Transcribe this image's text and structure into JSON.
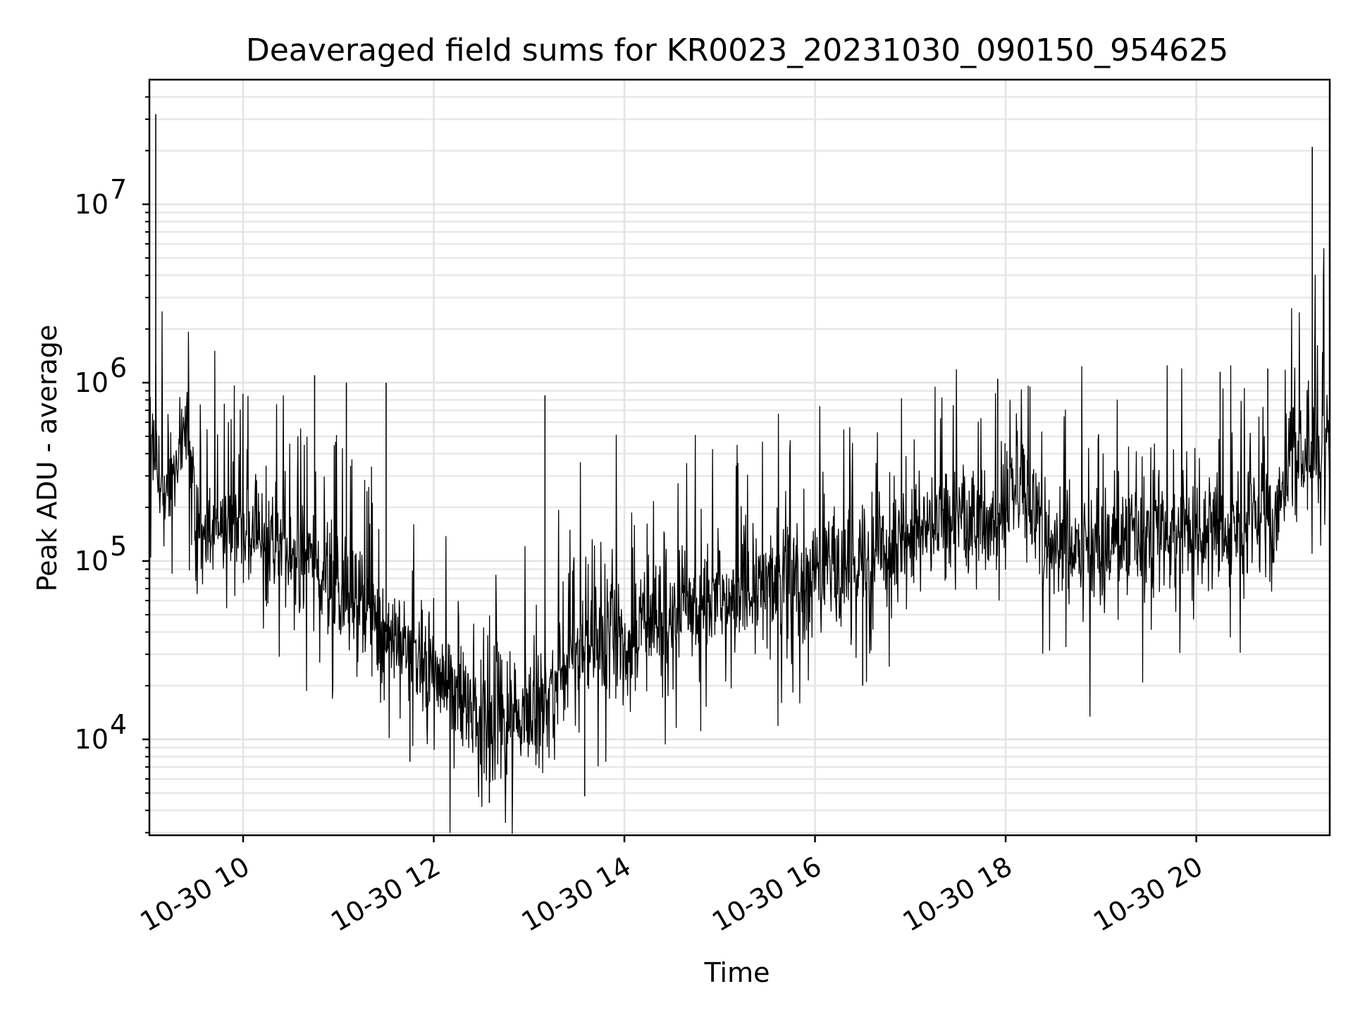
{
  "chart_data": {
    "type": "line",
    "title": "Deaveraged field sums for KR0023_20231030_090150_954625",
    "xlabel": "Time",
    "ylabel": "Peak ADU - average",
    "y_scale": "log",
    "grid": true,
    "line_color": "#000000",
    "grid_color": "#e3e3e3",
    "xlim": [
      "2023-10-30 09:01",
      "2023-10-30 21:24"
    ],
    "ylim": [
      2900,
      50000000
    ],
    "x_ticks": [
      {
        "time": "2023-10-30 10:00",
        "label": "10-30 10"
      },
      {
        "time": "2023-10-30 12:00",
        "label": "10-30 12"
      },
      {
        "time": "2023-10-30 14:00",
        "label": "10-30 14"
      },
      {
        "time": "2023-10-30 16:00",
        "label": "10-30 16"
      },
      {
        "time": "2023-10-30 18:00",
        "label": "10-30 18"
      },
      {
        "time": "2023-10-30 20:00",
        "label": "10-30 20"
      }
    ],
    "y_ticks": [
      {
        "value": 10000,
        "base": "10",
        "exp": "4"
      },
      {
        "value": 100000,
        "base": "10",
        "exp": "5"
      },
      {
        "value": 1000000,
        "base": "10",
        "exp": "6"
      },
      {
        "value": 10000000,
        "base": "10",
        "exp": "7"
      }
    ],
    "series": [
      {
        "values_profile": [
          {
            "time": "2023-10-30 09:01",
            "median": 400000
          },
          {
            "time": "2023-10-30 09:10",
            "median": 250000
          },
          {
            "time": "2023-10-30 09:25",
            "median": 500000
          },
          {
            "time": "2023-10-30 09:30",
            "median": 180000
          },
          {
            "time": "2023-10-30 10:00",
            "median": 150000
          },
          {
            "time": "2023-10-30 10:30",
            "median": 120000
          },
          {
            "time": "2023-10-30 11:00",
            "median": 70000
          },
          {
            "time": "2023-10-30 11:30",
            "median": 40000
          },
          {
            "time": "2023-10-30 12:00",
            "median": 25000
          },
          {
            "time": "2023-10-30 12:30",
            "median": 13000
          },
          {
            "time": "2023-10-30 13:00",
            "median": 14000
          },
          {
            "time": "2023-10-30 13:30",
            "median": 30000
          },
          {
            "time": "2023-10-30 14:00",
            "median": 35000
          },
          {
            "time": "2023-10-30 14:30",
            "median": 50000
          },
          {
            "time": "2023-10-30 15:00",
            "median": 60000
          },
          {
            "time": "2023-10-30 15:30",
            "median": 70000
          },
          {
            "time": "2023-10-30 16:00",
            "median": 90000
          },
          {
            "time": "2023-10-30 16:30",
            "median": 110000
          },
          {
            "time": "2023-10-30 17:00",
            "median": 130000
          },
          {
            "time": "2023-10-30 17:30",
            "median": 170000
          },
          {
            "time": "2023-10-30 17:55",
            "median": 180000
          },
          {
            "time": "2023-10-30 18:05",
            "median": 300000
          },
          {
            "time": "2023-10-30 18:20",
            "median": 200000
          },
          {
            "time": "2023-10-30 18:30",
            "median": 120000
          },
          {
            "time": "2023-10-30 19:00",
            "median": 120000
          },
          {
            "time": "2023-10-30 19:30",
            "median": 150000
          },
          {
            "time": "2023-10-30 20:00",
            "median": 140000
          },
          {
            "time": "2023-10-30 20:30",
            "median": 160000
          },
          {
            "time": "2023-10-30 20:50",
            "median": 170000
          },
          {
            "time": "2023-10-30 21:00",
            "median": 450000
          },
          {
            "time": "2023-10-30 21:24",
            "median": 450000
          }
        ],
        "spikes": [
          {
            "time": "2023-10-30 09:05",
            "value": 32000000
          },
          {
            "time": "2023-10-30 10:45",
            "value": 1100000
          },
          {
            "time": "2023-10-30 11:05",
            "value": 1000000
          },
          {
            "time": "2023-10-30 11:30",
            "value": 1000000
          },
          {
            "time": "2023-10-30 13:10",
            "value": 850000
          },
          {
            "time": "2023-10-30 17:55",
            "value": 1050000
          },
          {
            "time": "2023-10-30 20:15",
            "value": 1150000
          },
          {
            "time": "2023-10-30 20:45",
            "value": 1200000
          },
          {
            "time": "2023-10-30 21:13",
            "value": 21000000
          }
        ],
        "dips": [
          {
            "time": "2023-10-30 11:45",
            "value": 7500
          },
          {
            "time": "2023-10-30 12:35",
            "value": 4400
          },
          {
            "time": "2023-10-30 13:35",
            "value": 4800
          },
          {
            "time": "2023-10-30 16:30",
            "value": 20000
          }
        ]
      }
    ]
  }
}
